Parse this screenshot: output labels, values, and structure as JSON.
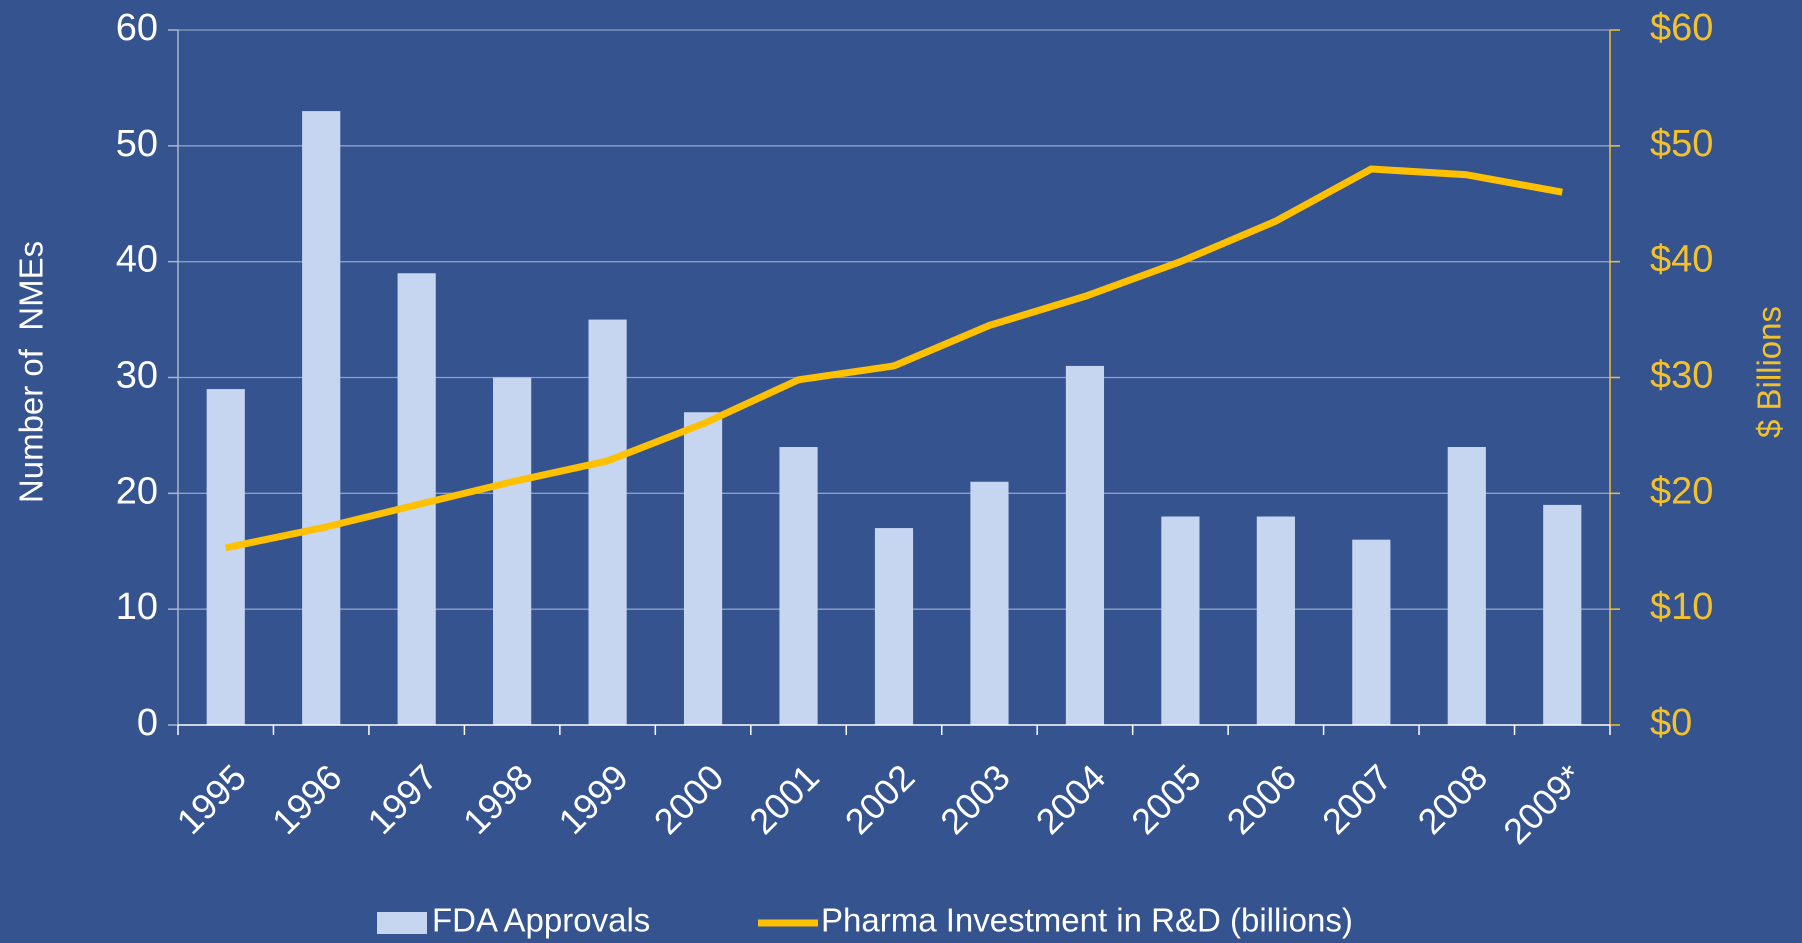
{
  "chart_data": {
    "type": "bar_line",
    "categories": [
      "1995",
      "1996",
      "1997",
      "1998",
      "1999",
      "2000",
      "2001",
      "2002",
      "2003",
      "2004",
      "2005",
      "2006",
      "2007",
      "2008",
      "2009*"
    ],
    "series": [
      {
        "name": "FDA Approvals",
        "type": "bar",
        "color": "#c6d6f0",
        "values": [
          29,
          53,
          39,
          30,
          35,
          27,
          24,
          17,
          21,
          31,
          18,
          18,
          16,
          24,
          19
        ]
      },
      {
        "name": "Pharma Investment in R&D (billions)",
        "type": "line",
        "axis": "y2",
        "color": "#ffc000",
        "values": [
          15.3,
          17,
          19,
          21,
          22.8,
          26,
          29.8,
          31,
          34.5,
          37,
          40,
          43.5,
          48,
          47.5,
          46
        ]
      }
    ],
    "ylabel": "Number of  NMEs",
    "y2label": "$ Billions",
    "ylim": [
      0,
      60
    ],
    "yticks": [
      0,
      10,
      20,
      30,
      40,
      50,
      60
    ],
    "y2lim": [
      0,
      60
    ],
    "y2ticks": [
      {
        "value": 0,
        "label": "$0"
      },
      {
        "value": 10,
        "label": "$10"
      },
      {
        "value": 20,
        "label": "$20"
      },
      {
        "value": 30,
        "label": "$30"
      },
      {
        "value": 40,
        "label": "$40"
      },
      {
        "value": 50,
        "label": "$50"
      },
      {
        "value": 60,
        "label": "$60"
      }
    ],
    "y2color": "#f2c12e",
    "grid": true,
    "legend": "bottom"
  }
}
